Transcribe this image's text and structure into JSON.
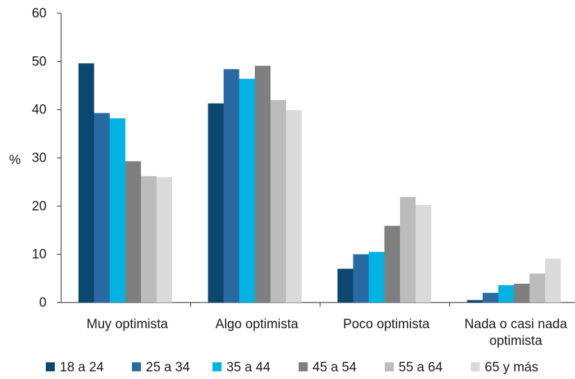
{
  "chart_data": {
    "type": "bar",
    "ylabel": "%",
    "ylim": [
      0,
      60
    ],
    "yticks": [
      "0",
      "10",
      "20",
      "30",
      "40",
      "50",
      "60"
    ],
    "categories": [
      [
        "Muy optimista"
      ],
      [
        "Algo optimista"
      ],
      [
        "Poco optimista"
      ],
      [
        "Nada o casi nada",
        "optimista"
      ]
    ],
    "series": [
      {
        "name": "18 a 24",
        "color": "#0b4870",
        "values": [
          49.6,
          41.3,
          7.0,
          0.5
        ]
      },
      {
        "name": "25 a 34",
        "color": "#2a6aa3",
        "values": [
          39.3,
          48.4,
          10.0,
          2.0
        ]
      },
      {
        "name": "35 a 44",
        "color": "#00b3e3",
        "values": [
          38.2,
          46.4,
          10.5,
          3.6
        ]
      },
      {
        "name": "45 a 54",
        "color": "#7f7f7f",
        "values": [
          29.3,
          49.1,
          15.9,
          3.9
        ]
      },
      {
        "name": "55 a 64",
        "color": "#bcbcbc",
        "values": [
          26.2,
          42.0,
          21.9,
          6.0
        ]
      },
      {
        "name": "65 y más",
        "color": "#dadada",
        "values": [
          26.0,
          39.9,
          20.2,
          9.1
        ]
      }
    ],
    "grid": false,
    "legend_position": "bottom"
  }
}
